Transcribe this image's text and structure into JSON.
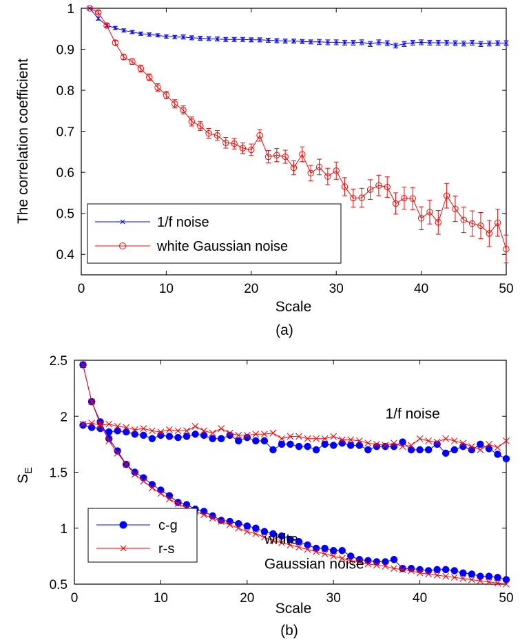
{
  "chart_data": [
    {
      "type": "line",
      "panel_label": "(a)",
      "xlabel": "Scale",
      "ylabel": "The correlation coefficient",
      "xlim": [
        0,
        50
      ],
      "ylim": [
        0.35,
        1.0
      ],
      "xticks": [
        "0",
        "10",
        "20",
        "30",
        "40",
        "50"
      ],
      "yticks": [
        "0.4",
        "0.5",
        "0.6",
        "0.7",
        "0.8",
        "0.9",
        "1"
      ],
      "grid": false,
      "legend_position": "bottom-left",
      "x": [
        1,
        2,
        3,
        4,
        5,
        6,
        7,
        8,
        9,
        10,
        11,
        12,
        13,
        14,
        15,
        16,
        17,
        18,
        19,
        20,
        21,
        22,
        23,
        24,
        25,
        26,
        27,
        28,
        29,
        30,
        31,
        32,
        33,
        34,
        35,
        36,
        37,
        38,
        39,
        40,
        41,
        42,
        43,
        44,
        45,
        46,
        47,
        48,
        49,
        50
      ],
      "series": [
        {
          "name": "1/f noise",
          "color": "#0000ff",
          "marker": "x",
          "values": [
            1.0,
            0.975,
            0.958,
            0.952,
            0.946,
            0.942,
            0.938,
            0.936,
            0.934,
            0.931,
            0.93,
            0.93,
            0.928,
            0.927,
            0.926,
            0.925,
            0.924,
            0.924,
            0.924,
            0.923,
            0.923,
            0.922,
            0.921,
            0.92,
            0.92,
            0.919,
            0.918,
            0.918,
            0.917,
            0.917,
            0.916,
            0.916,
            0.917,
            0.913,
            0.917,
            0.915,
            0.909,
            0.913,
            0.916,
            0.917,
            0.916,
            0.916,
            0.916,
            0.915,
            0.914,
            0.916,
            0.913,
            0.914,
            0.915,
            0.915
          ],
          "errors": [
            0.0,
            0.004,
            0.004,
            0.004,
            0.004,
            0.004,
            0.004,
            0.004,
            0.004,
            0.004,
            0.004,
            0.005,
            0.005,
            0.005,
            0.005,
            0.005,
            0.005,
            0.005,
            0.005,
            0.005,
            0.005,
            0.005,
            0.005,
            0.005,
            0.005,
            0.005,
            0.005,
            0.006,
            0.006,
            0.006,
            0.006,
            0.006,
            0.006,
            0.006,
            0.006,
            0.006,
            0.006,
            0.006,
            0.006,
            0.006,
            0.006,
            0.006,
            0.006,
            0.006,
            0.006,
            0.006,
            0.006,
            0.006,
            0.006,
            0.006
          ]
        },
        {
          "name": "white Gaussian noise",
          "color": "#ff0000",
          "marker": "o",
          "values": [
            1.0,
            0.99,
            0.958,
            0.916,
            0.881,
            0.87,
            0.853,
            0.832,
            0.807,
            0.788,
            0.767,
            0.752,
            0.724,
            0.713,
            0.695,
            0.69,
            0.672,
            0.67,
            0.659,
            0.655,
            0.69,
            0.638,
            0.642,
            0.638,
            0.611,
            0.644,
            0.598,
            0.613,
            0.59,
            0.604,
            0.565,
            0.537,
            0.538,
            0.558,
            0.568,
            0.564,
            0.524,
            0.537,
            0.536,
            0.488,
            0.503,
            0.478,
            0.543,
            0.511,
            0.484,
            0.475,
            0.47,
            0.451,
            0.477,
            0.413
          ],
          "errors": [
            0.0,
            0.004,
            0.004,
            0.006,
            0.006,
            0.007,
            0.008,
            0.008,
            0.009,
            0.009,
            0.01,
            0.01,
            0.011,
            0.011,
            0.012,
            0.012,
            0.013,
            0.013,
            0.013,
            0.014,
            0.014,
            0.015,
            0.016,
            0.016,
            0.017,
            0.018,
            0.019,
            0.019,
            0.02,
            0.021,
            0.022,
            0.022,
            0.023,
            0.024,
            0.025,
            0.025,
            0.026,
            0.027,
            0.027,
            0.028,
            0.029,
            0.029,
            0.03,
            0.031,
            0.031,
            0.031,
            0.032,
            0.032,
            0.033,
            0.034
          ]
        }
      ]
    },
    {
      "type": "line",
      "panel_label": "(b)",
      "xlabel": "Scale",
      "ylabel": "S",
      "ylabel_sub": "E",
      "xlim": [
        0,
        50
      ],
      "ylim": [
        0.5,
        2.5
      ],
      "xticks": [
        "0",
        "10",
        "20",
        "30",
        "40",
        "50"
      ],
      "yticks": [
        "0.5",
        "1",
        "1.5",
        "2",
        "2.5"
      ],
      "grid": false,
      "legend_position": "bottom-left",
      "annotations": [
        {
          "text": "1/f noise",
          "x": 36,
          "y": 1.98
        },
        {
          "text": "white",
          "x": 22,
          "y": 0.86
        },
        {
          "text": "Gaussian noise",
          "x": 22,
          "y": 0.64
        }
      ],
      "x": [
        1,
        2,
        3,
        4,
        5,
        6,
        7,
        8,
        9,
        10,
        11,
        12,
        13,
        14,
        15,
        16,
        17,
        18,
        19,
        20,
        21,
        22,
        23,
        24,
        25,
        26,
        27,
        28,
        29,
        30,
        31,
        32,
        33,
        34,
        35,
        36,
        37,
        38,
        39,
        40,
        41,
        42,
        43,
        44,
        45,
        46,
        47,
        48,
        49,
        50
      ],
      "series": [
        {
          "name": "c-g",
          "group": "1/f noise",
          "color": "#0000ff",
          "marker": "o",
          "values": [
            1.92,
            1.9,
            1.89,
            1.86,
            1.87,
            1.86,
            1.84,
            1.83,
            1.8,
            1.83,
            1.82,
            1.81,
            1.82,
            1.84,
            1.83,
            1.8,
            1.8,
            1.83,
            1.78,
            1.81,
            1.78,
            1.78,
            1.7,
            1.75,
            1.75,
            1.73,
            1.73,
            1.7,
            1.75,
            1.74,
            1.76,
            1.74,
            1.74,
            1.7,
            1.73,
            1.73,
            1.73,
            1.77,
            1.7,
            1.7,
            1.7,
            1.75,
            1.67,
            1.7,
            1.73,
            1.7,
            1.75,
            1.71,
            1.66,
            1.62
          ]
        },
        {
          "name": "r-s",
          "group": "1/f noise",
          "color": "#ff0000",
          "marker": "x",
          "values": [
            1.93,
            1.94,
            1.92,
            1.93,
            1.91,
            1.9,
            1.88,
            1.89,
            1.87,
            1.86,
            1.88,
            1.87,
            1.87,
            1.91,
            1.87,
            1.85,
            1.89,
            1.85,
            1.83,
            1.83,
            1.84,
            1.84,
            1.85,
            1.8,
            1.82,
            1.82,
            1.8,
            1.8,
            1.8,
            1.82,
            1.79,
            1.79,
            1.78,
            1.76,
            1.75,
            1.74,
            1.76,
            1.73,
            1.74,
            1.8,
            1.78,
            1.77,
            1.8,
            1.78,
            1.76,
            1.73,
            1.7,
            1.75,
            1.72,
            1.78
          ]
        },
        {
          "name": "c-g",
          "group": "white Gaussian noise",
          "color": "#0000ff",
          "marker": "o",
          "values": [
            2.46,
            2.13,
            1.95,
            1.8,
            1.69,
            1.57,
            1.5,
            1.45,
            1.39,
            1.34,
            1.29,
            1.23,
            1.21,
            1.17,
            1.15,
            1.11,
            1.07,
            1.06,
            1.04,
            1.02,
            1.0,
            0.97,
            0.95,
            0.93,
            0.9,
            0.88,
            0.85,
            0.82,
            0.82,
            0.8,
            0.8,
            0.75,
            0.72,
            0.71,
            0.7,
            0.7,
            0.72,
            0.64,
            0.64,
            0.63,
            0.62,
            0.63,
            0.63,
            0.62,
            0.6,
            0.59,
            0.57,
            0.57,
            0.56,
            0.54
          ]
        },
        {
          "name": "r-s",
          "group": "white Gaussian noise",
          "color": "#ff0000",
          "marker": "x",
          "values": [
            2.46,
            2.13,
            1.93,
            1.78,
            1.67,
            1.57,
            1.48,
            1.42,
            1.36,
            1.31,
            1.26,
            1.22,
            1.18,
            1.15,
            1.12,
            1.09,
            1.06,
            1.03,
            1.0,
            0.97,
            0.95,
            0.92,
            0.89,
            0.87,
            0.85,
            0.83,
            0.81,
            0.79,
            0.77,
            0.75,
            0.73,
            0.71,
            0.7,
            0.68,
            0.67,
            0.66,
            0.64,
            0.63,
            0.62,
            0.6,
            0.59,
            0.58,
            0.57,
            0.56,
            0.55,
            0.54,
            0.53,
            0.52,
            0.51,
            0.5
          ]
        }
      ],
      "legend": [
        {
          "label": "c-g",
          "color": "#0000ff",
          "marker": "o"
        },
        {
          "label": "r-s",
          "color": "#ff0000",
          "marker": "x"
        }
      ]
    }
  ]
}
